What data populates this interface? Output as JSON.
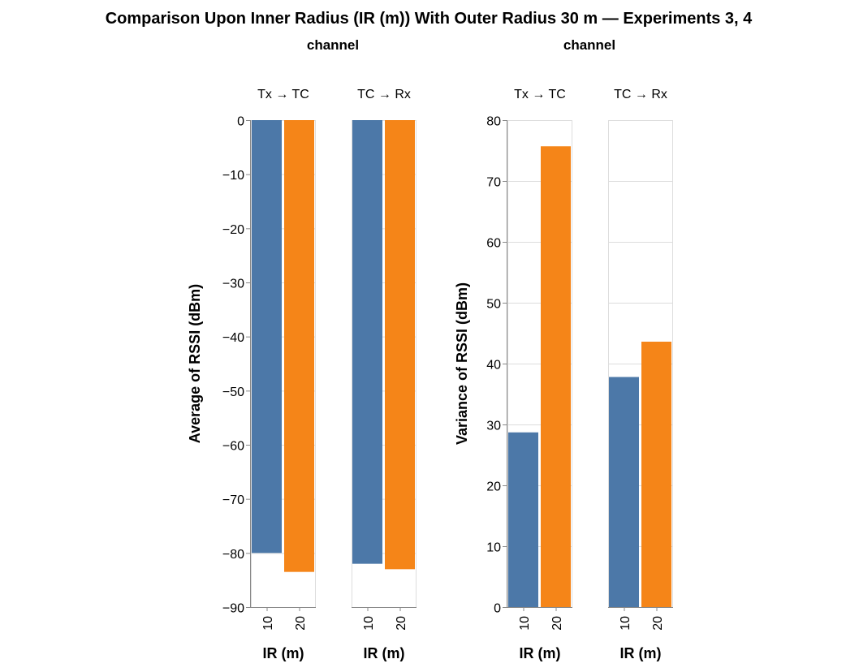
{
  "title": "Comparison Upon Inner Radius (IR (m)) With Outer Radius 30 m — Experiments 3, 4",
  "colors": {
    "ir_10": "#4c78a8",
    "ir_20": "#f58518"
  },
  "chart_data": [
    {
      "type": "bar",
      "column_header": "channel",
      "facets": [
        "Tx → TC",
        "TC → Rx"
      ],
      "xlabel": "IR (m)",
      "categories": [
        "10",
        "20"
      ],
      "ylabel": "Average of RSSI (dBm)",
      "ylim": [
        -90,
        0
      ],
      "yticks": [
        0,
        -10,
        -20,
        -30,
        -40,
        -50,
        -60,
        -70,
        -80,
        -90
      ],
      "yticklabels": [
        "0",
        "−10",
        "−20",
        "−30",
        "−40",
        "−50",
        "−60",
        "−70",
        "−80",
        "−90"
      ],
      "grid": true,
      "values": [
        [
          -80.0,
          -83.5
        ],
        [
          -82.0,
          -83.0
        ]
      ]
    },
    {
      "type": "bar",
      "column_header": "channel",
      "facets": [
        "Tx → TC",
        "TC → Rx"
      ],
      "xlabel": "IR (m)",
      "categories": [
        "10",
        "20"
      ],
      "ylabel": "Variance of RSSI (dBm)",
      "ylim": [
        0,
        80
      ],
      "yticks": [
        0,
        10,
        20,
        30,
        40,
        50,
        60,
        70,
        80
      ],
      "yticklabels": [
        "0",
        "10",
        "20",
        "30",
        "40",
        "50",
        "60",
        "70",
        "80"
      ],
      "grid": true,
      "values": [
        [
          28.7,
          75.7
        ],
        [
          37.8,
          43.6
        ]
      ]
    }
  ]
}
